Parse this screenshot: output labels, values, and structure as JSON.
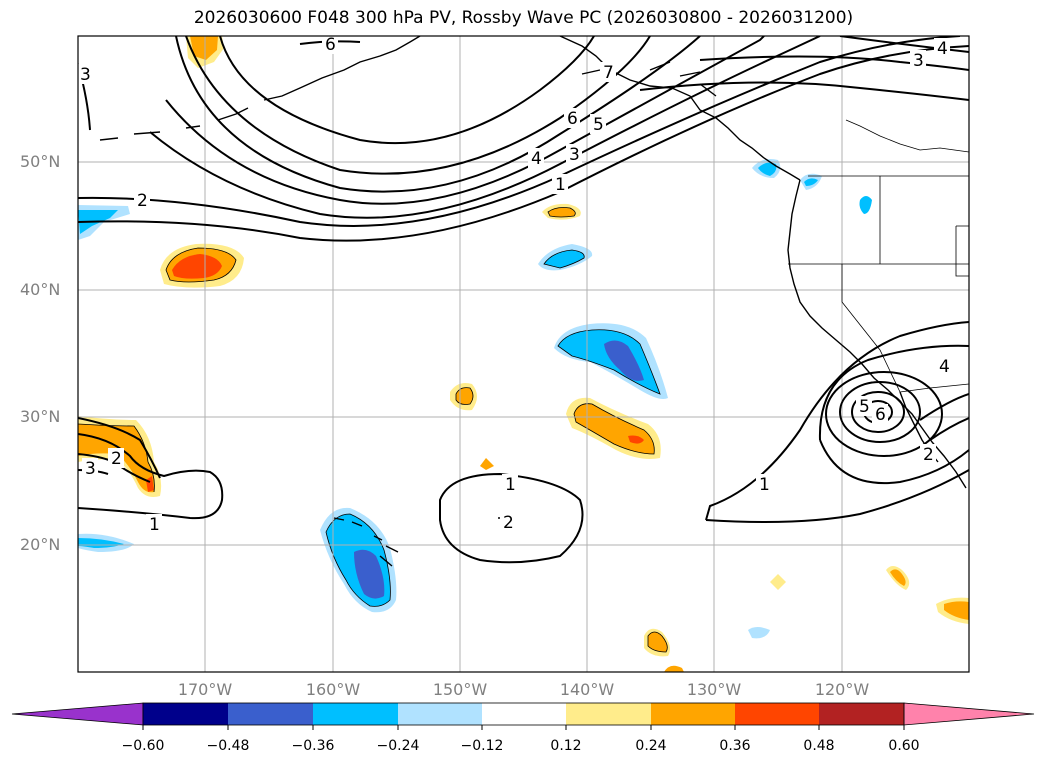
{
  "title": "2026030600 F048 300 hPa PV, Rossby Wave PC (2026030800 - 2026031200)",
  "lat_labels": [
    "50°N",
    "40°N",
    "30°N",
    "20°N"
  ],
  "lon_labels": [
    "170°W",
    "160°W",
    "150°W",
    "140°W",
    "130°W",
    "120°W"
  ],
  "contour_labels": [
    "3",
    "6",
    "7",
    "4",
    "3",
    "6",
    "5",
    "4",
    "3",
    "1",
    "2",
    "4",
    "6",
    "5",
    "2",
    "1",
    "1",
    "2",
    "3",
    "1",
    "2"
  ],
  "colorbar": {
    "colors": [
      "#9932cc",
      "#00008b",
      "#3a5fcd",
      "#00bfff",
      "#b0e2ff",
      "#ffffff",
      "#ffec8b",
      "#ffa500",
      "#ff4500",
      "#b22222",
      "#ff82ab"
    ],
    "tick_labels": [
      "−0.60",
      "−0.48",
      "−0.36",
      "−0.24",
      "−0.12",
      "0.12",
      "0.24",
      "0.36",
      "0.48",
      "0.60"
    ]
  }
}
